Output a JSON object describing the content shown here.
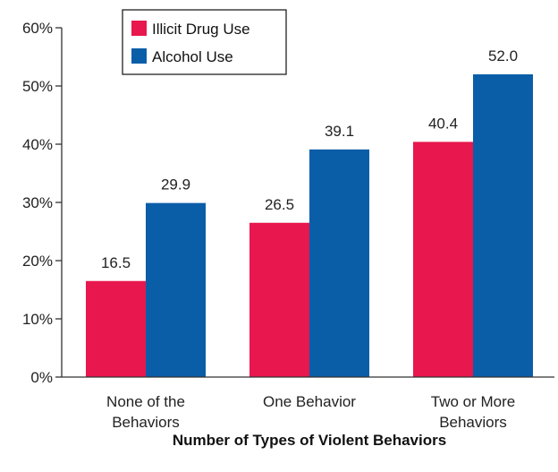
{
  "chart_data": {
    "type": "bar",
    "title": "",
    "xlabel": "Number of Types of Violent Behaviors",
    "ylabel": "",
    "categories": [
      [
        "None of the",
        "Behaviors"
      ],
      [
        "One Behavior"
      ],
      [
        "Two or More",
        "Behaviors"
      ]
    ],
    "series": [
      {
        "name": "Illicit Drug Use",
        "color": "#e8174d",
        "values": [
          16.5,
          26.5,
          40.4
        ]
      },
      {
        "name": "Alcohol Use",
        "color": "#0a5ea8",
        "values": [
          29.9,
          39.1,
          52.0
        ]
      }
    ],
    "ylim": [
      0,
      60
    ],
    "yticks": [
      0,
      10,
      20,
      30,
      40,
      50,
      60
    ],
    "ytick_labels": [
      "0%",
      "10%",
      "20%",
      "30%",
      "40%",
      "50%",
      "60%"
    ],
    "value_labels": [
      [
        "16.5",
        "26.5",
        "40.4"
      ],
      [
        "29.9",
        "39.1",
        "52.0"
      ]
    ],
    "legend": "top-left",
    "grid": false
  }
}
